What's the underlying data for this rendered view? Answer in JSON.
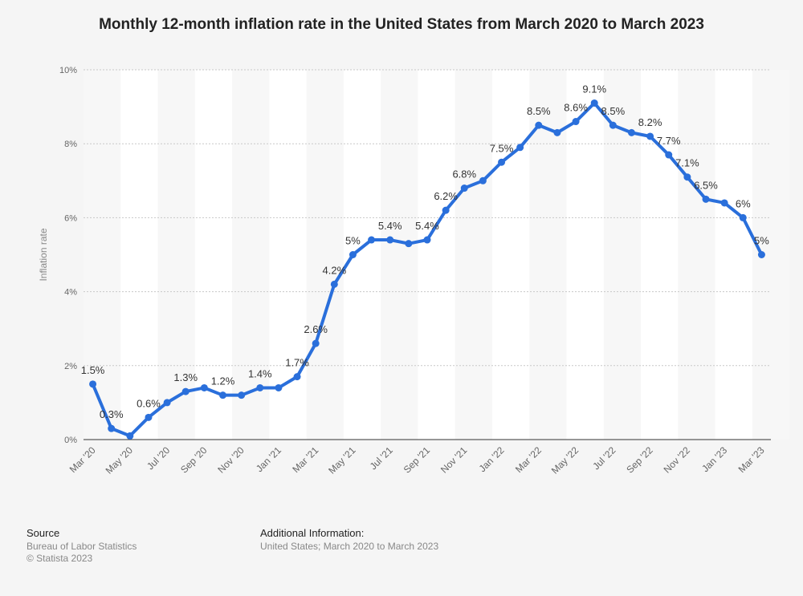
{
  "chart_data": {
    "type": "line",
    "title": "Monthly 12-month inflation rate in the United States from March 2020 to March 2023",
    "ylabel": "Inflation rate",
    "xlabel": "",
    "ylim": [
      0,
      10
    ],
    "y_ticks": [
      "0%",
      "2%",
      "4%",
      "6%",
      "8%",
      "10%"
    ],
    "x": [
      "Mar '20",
      "Apr '20",
      "May '20",
      "Jun '20",
      "Jul '20",
      "Aug '20",
      "Sep '20",
      "Oct '20",
      "Nov '20",
      "Dec '20",
      "Jan '21",
      "Feb '21",
      "Mar '21",
      "Apr '21",
      "May '21",
      "Jun '21",
      "Jul '21",
      "Aug '21",
      "Sep '21",
      "Oct '21",
      "Nov '21",
      "Dec '21",
      "Jan '22",
      "Feb '22",
      "Mar '22",
      "Apr '22",
      "May '22",
      "Jun '22",
      "Jul '22",
      "Aug '22",
      "Sep '22",
      "Oct '22",
      "Nov '22",
      "Dec '22",
      "Jan '23",
      "Feb '23",
      "Mar '23"
    ],
    "x_tick_labels": [
      "Mar '20",
      "May '20",
      "Jul '20",
      "Sep '20",
      "Nov '20",
      "Jan '21",
      "Mar '21",
      "May '21",
      "Jul '21",
      "Sep '21",
      "Nov '21",
      "Jan '22",
      "Mar '22",
      "May '22",
      "Jul '22",
      "Sep '22",
      "Nov '22",
      "Jan '23",
      "Mar '23"
    ],
    "series": [
      {
        "values": [
          1.5,
          0.3,
          0.1,
          0.6,
          1.0,
          1.3,
          1.4,
          1.2,
          1.2,
          1.4,
          1.4,
          1.7,
          2.6,
          4.2,
          5.0,
          5.4,
          5.4,
          5.3,
          5.4,
          6.2,
          6.8,
          7.0,
          7.5,
          7.9,
          8.5,
          8.3,
          8.6,
          9.1,
          8.5,
          8.3,
          8.2,
          7.7,
          7.1,
          6.5,
          6.4,
          6.0,
          5.0
        ],
        "labels": [
          "1.5%",
          "0.3%",
          null,
          "0.6%",
          null,
          "1.3%",
          null,
          "1.2%",
          null,
          "1.4%",
          null,
          "1.7%",
          "2.6%",
          "4.2%",
          "5%",
          null,
          "5.4%",
          null,
          "5.4%",
          "6.2%",
          "6.8%",
          null,
          "7.5%",
          null,
          "8.5%",
          null,
          "8.6%",
          "9.1%",
          "8.5%",
          null,
          "8.2%",
          "7.7%",
          "7.1%",
          "6.5%",
          null,
          "6%",
          "5%"
        ]
      }
    ],
    "grid": true,
    "line_color": "#2a6fdb"
  },
  "footer": {
    "source_heading": "Source",
    "source_line1": "Bureau of Labor Statistics",
    "source_line2": "© Statista 2023",
    "info_heading": "Additional Information:",
    "info_line1": "United States; March 2020 to March 2023"
  }
}
